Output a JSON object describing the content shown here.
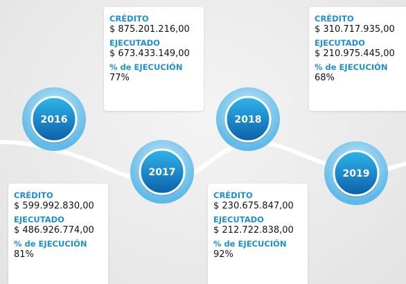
{
  "years": [
    {
      "year": "2016",
      "credito_label": "CRÉDITO",
      "credito": "$ 599.992.830,00",
      "ejecutado_label": "EJECUTADO",
      "ejecutado": "$ 486.926.774,00",
      "ejecucion_label": "% de EJECUCIÓN",
      "ejecucion": "81%"
    },
    {
      "year": "2017",
      "credito_label": "CRÉDITO",
      "credito": "$ 875.201.216,00",
      "ejecutado_label": "EJECUTADO",
      "ejecutado": "$ 673.433.149,00",
      "ejecucion_label": "% de EJECUCIÓN",
      "ejecucion": "77%"
    },
    {
      "year": "2018",
      "credito_label": "CRÉDITO",
      "credito": "$ 230.675.847,00",
      "ejecutado_label": "EJECUTADO",
      "ejecutado": "$ 212.722.838,00",
      "ejecucion_label": "% de EJECUCIÓN",
      "ejecucion": "92%"
    },
    {
      "year": "2019",
      "credito_label": "CRÉDITO",
      "credito": "$ 310.717.935,00",
      "ejecutado_label": "EJECUTADO",
      "ejecutado": "$ 210.975.445,00",
      "ejecucion_label": "% de EJECUCIÓN",
      "ejecucion": "68%"
    }
  ]
}
